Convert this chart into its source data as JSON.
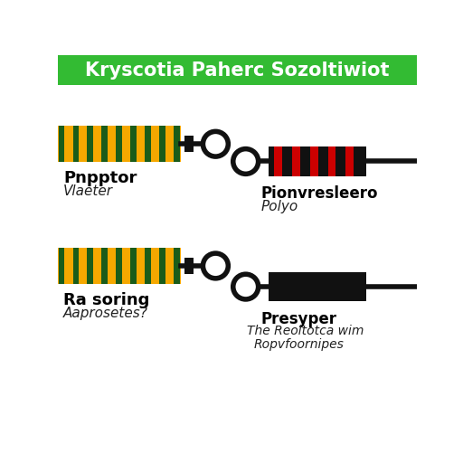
{
  "title": "Kryscotia Paherc Sozoltiwiot",
  "title_bg": "#33bb33",
  "title_color": "#ffffff",
  "title_fontsize": 15,
  "bg_color": "#ffffff",
  "items": [
    {
      "label1": "Pnpptor",
      "label2": "Vlaeter",
      "resistor_type": "carbon_film"
    },
    {
      "label1": "Ra soring",
      "label2": "Aaprosetes?",
      "resistor_type": "carbon_film"
    },
    {
      "label1": "Pionvresleero",
      "label2": "Polyo",
      "resistor_type": "wirewound_red"
    },
    {
      "label1": "Presyper",
      "label2": "The Reoltotca wim",
      "label3": "Ropvfoornipes",
      "resistor_type": "solid_black"
    }
  ],
  "carbon_stripe_color": "#1a5c1a",
  "carbon_base_color": "#F5A800",
  "wire_color": "#111111",
  "black_body_color": "#111111",
  "red_stripe_color": "#cc0000"
}
